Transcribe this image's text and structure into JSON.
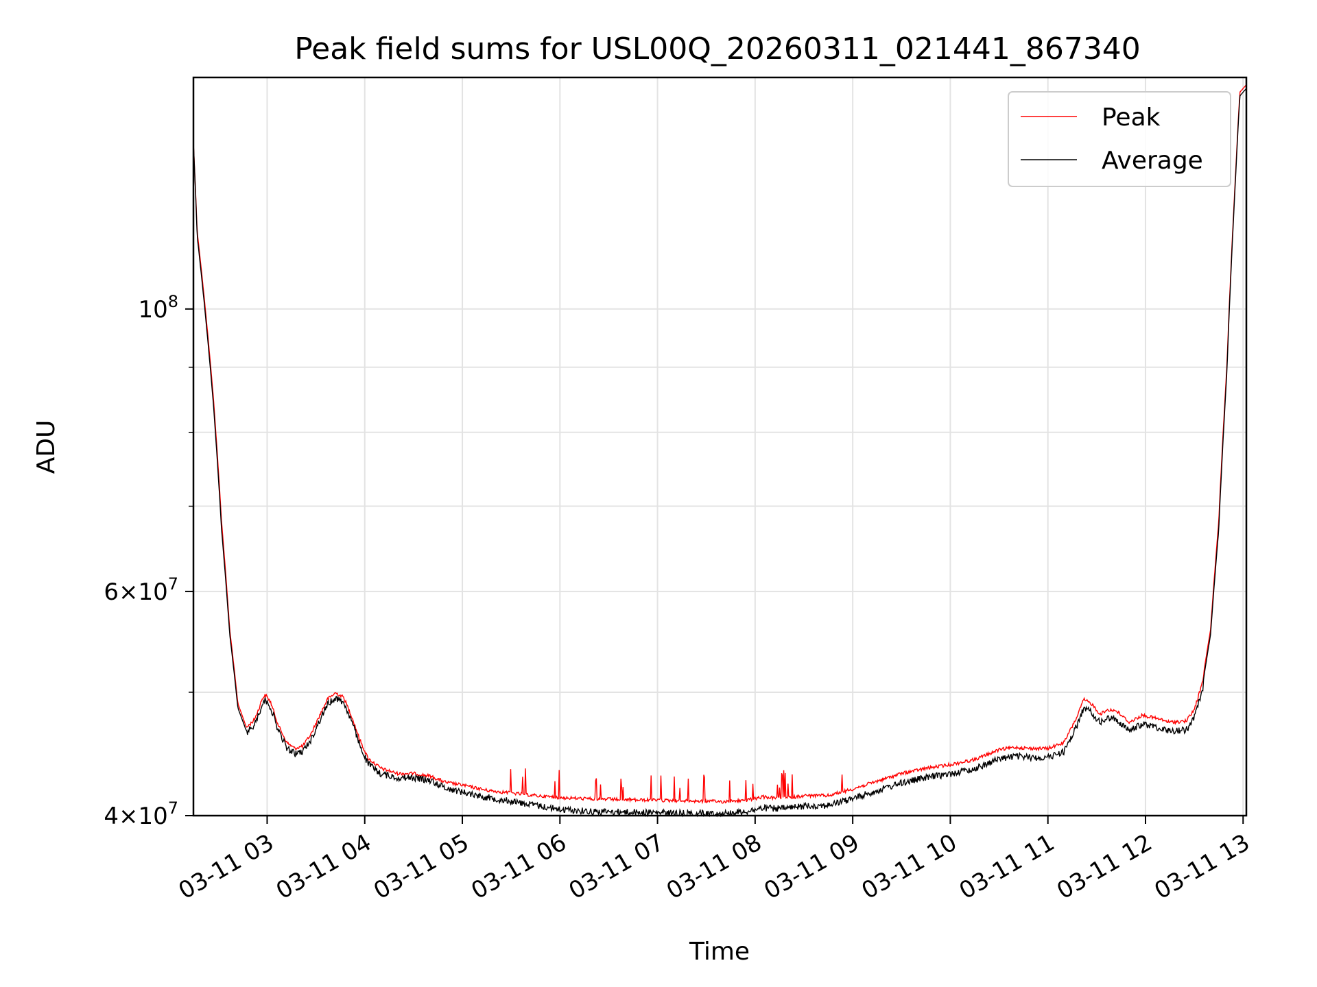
{
  "chart_data": {
    "type": "line",
    "title": "Peak field sums for USL00Q_20260311_021441_867340",
    "xlabel": "Time",
    "ylabel": "ADU",
    "x_scale": "time",
    "y_scale": "log",
    "xlim": [
      "2026-03-11 02:14:41",
      "2026-03-11 13:02:00"
    ],
    "ylim": [
      40000000,
      152000000
    ],
    "x_ticks": [
      {
        "t": "2026-03-11 03:00",
        "label": "03-11 03"
      },
      {
        "t": "2026-03-11 04:00",
        "label": "03-11 04"
      },
      {
        "t": "2026-03-11 05:00",
        "label": "03-11 05"
      },
      {
        "t": "2026-03-11 06:00",
        "label": "03-11 06"
      },
      {
        "t": "2026-03-11 07:00",
        "label": "03-11 07"
      },
      {
        "t": "2026-03-11 08:00",
        "label": "03-11 08"
      },
      {
        "t": "2026-03-11 09:00",
        "label": "03-11 09"
      },
      {
        "t": "2026-03-11 10:00",
        "label": "03-11 10"
      },
      {
        "t": "2026-03-11 11:00",
        "label": "03-11 11"
      },
      {
        "t": "2026-03-11 12:00",
        "label": "03-11 12"
      },
      {
        "t": "2026-03-11 13:00",
        "label": "03-11 13"
      }
    ],
    "y_major_ticks": [
      {
        "value": 40000000,
        "mantissa": "4",
        "exponent": "7"
      },
      {
        "value": 60000000,
        "mantissa": "6",
        "exponent": "7"
      },
      {
        "value": 100000000,
        "mantissa": "",
        "exponent": "8"
      }
    ],
    "y_minor_ticks": [
      50000000,
      70000000,
      80000000,
      90000000
    ],
    "grid": true,
    "legend_position": "top-right",
    "series": [
      {
        "name": "Peak",
        "color": "#ff0000",
        "points": [
          [
            "2026-03-11 02:14:41",
            135000000
          ],
          [
            "2026-03-11 02:17",
            115000000
          ],
          [
            "2026-03-11 02:22",
            100000000
          ],
          [
            "2026-03-11 02:27",
            85000000
          ],
          [
            "2026-03-11 02:32",
            68000000
          ],
          [
            "2026-03-11 02:37",
            56000000
          ],
          [
            "2026-03-11 02:42",
            49000000
          ],
          [
            "2026-03-11 02:47",
            47000000
          ],
          [
            "2026-03-11 02:52",
            47700000
          ],
          [
            "2026-03-11 02:55",
            48700000
          ],
          [
            "2026-03-11 02:57",
            49600000
          ],
          [
            "2026-03-11 02:59",
            49900000
          ],
          [
            "2026-03-11 03:02",
            49300000
          ],
          [
            "2026-03-11 03:07",
            47200000
          ],
          [
            "2026-03-11 03:12",
            45800000
          ],
          [
            "2026-03-11 03:17",
            45300000
          ],
          [
            "2026-03-11 03:22",
            45500000
          ],
          [
            "2026-03-11 03:27",
            46500000
          ],
          [
            "2026-03-11 03:32",
            48000000
          ],
          [
            "2026-03-11 03:37",
            49500000
          ],
          [
            "2026-03-11 03:42",
            50100000
          ],
          [
            "2026-03-11 03:47",
            49700000
          ],
          [
            "2026-03-11 03:52",
            48000000
          ],
          [
            "2026-03-11 03:57",
            46000000
          ],
          [
            "2026-03-11 04:02",
            44500000
          ],
          [
            "2026-03-11 04:10",
            43700000
          ],
          [
            "2026-03-11 04:20",
            43300000
          ],
          [
            "2026-03-11 04:30",
            43300000
          ],
          [
            "2026-03-11 04:40",
            43100000
          ],
          [
            "2026-03-11 04:50",
            42600000
          ],
          [
            "2026-03-11 05:00",
            42400000
          ],
          [
            "2026-03-11 05:15",
            42000000
          ],
          [
            "2026-03-11 05:30",
            41800000
          ],
          [
            "2026-03-11 05:45",
            41600000
          ],
          [
            "2026-03-11 06:00",
            41450000
          ],
          [
            "2026-03-11 06:20",
            41350000
          ],
          [
            "2026-03-11 06:40",
            41300000
          ],
          [
            "2026-03-11 07:00",
            41250000
          ],
          [
            "2026-03-11 07:20",
            41200000
          ],
          [
            "2026-03-11 07:40",
            41150000
          ],
          [
            "2026-03-11 07:55",
            41250000
          ],
          [
            "2026-03-11 08:05",
            41500000
          ],
          [
            "2026-03-11 08:15",
            41400000
          ],
          [
            "2026-03-11 08:25",
            41500000
          ],
          [
            "2026-03-11 08:30",
            41600000
          ],
          [
            "2026-03-11 08:45",
            41600000
          ],
          [
            "2026-03-11 09:00",
            42100000
          ],
          [
            "2026-03-11 09:15",
            42700000
          ],
          [
            "2026-03-11 09:30",
            43300000
          ],
          [
            "2026-03-11 09:45",
            43700000
          ],
          [
            "2026-03-11 10:00",
            44000000
          ],
          [
            "2026-03-11 10:15",
            44400000
          ],
          [
            "2026-03-11 10:30",
            45200000
          ],
          [
            "2026-03-11 10:40",
            45400000
          ],
          [
            "2026-03-11 10:50",
            45300000
          ],
          [
            "2026-03-11 11:00",
            45300000
          ],
          [
            "2026-03-11 11:10",
            45800000
          ],
          [
            "2026-03-11 11:18",
            48000000
          ],
          [
            "2026-03-11 11:22",
            49500000
          ],
          [
            "2026-03-11 11:27",
            49100000
          ],
          [
            "2026-03-11 11:32",
            48200000
          ],
          [
            "2026-03-11 11:37",
            48600000
          ],
          [
            "2026-03-11 11:42",
            48500000
          ],
          [
            "2026-03-11 11:50",
            47500000
          ],
          [
            "2026-03-11 11:58",
            48100000
          ],
          [
            "2026-03-11 12:05",
            47900000
          ],
          [
            "2026-03-11 12:15",
            47500000
          ],
          [
            "2026-03-11 12:25",
            47600000
          ],
          [
            "2026-03-11 12:30",
            48600000
          ],
          [
            "2026-03-11 12:35",
            51000000
          ],
          [
            "2026-03-11 12:40",
            56000000
          ],
          [
            "2026-03-11 12:45",
            68000000
          ],
          [
            "2026-03-11 12:50",
            90000000
          ],
          [
            "2026-03-11 12:55",
            125000000
          ],
          [
            "2026-03-11 12:58",
            148000000
          ],
          [
            "2026-03-11 13:02",
            150000000
          ]
        ]
      },
      {
        "name": "Average",
        "color": "#000000",
        "points": [
          [
            "2026-03-11 02:14:41",
            135000000
          ],
          [
            "2026-03-11 02:17",
            114000000
          ],
          [
            "2026-03-11 02:22",
            99000000
          ],
          [
            "2026-03-11 02:27",
            84000000
          ],
          [
            "2026-03-11 02:32",
            67000000
          ],
          [
            "2026-03-11 02:37",
            55500000
          ],
          [
            "2026-03-11 02:42",
            48600000
          ],
          [
            "2026-03-11 02:47",
            46700000
          ],
          [
            "2026-03-11 02:52",
            47400000
          ],
          [
            "2026-03-11 02:55",
            48400000
          ],
          [
            "2026-03-11 02:57",
            49300000
          ],
          [
            "2026-03-11 02:59",
            49600000
          ],
          [
            "2026-03-11 03:02",
            49000000
          ],
          [
            "2026-03-11 03:07",
            46900000
          ],
          [
            "2026-03-11 03:12",
            45500000
          ],
          [
            "2026-03-11 03:17",
            45000000
          ],
          [
            "2026-03-11 03:22",
            45200000
          ],
          [
            "2026-03-11 03:27",
            46200000
          ],
          [
            "2026-03-11 03:32",
            47700000
          ],
          [
            "2026-03-11 03:37",
            49200000
          ],
          [
            "2026-03-11 03:42",
            49800000
          ],
          [
            "2026-03-11 03:47",
            49400000
          ],
          [
            "2026-03-11 03:52",
            47700000
          ],
          [
            "2026-03-11 03:57",
            45700000
          ],
          [
            "2026-03-11 04:02",
            44200000
          ],
          [
            "2026-03-11 04:10",
            43400000
          ],
          [
            "2026-03-11 04:20",
            43100000
          ],
          [
            "2026-03-11 04:30",
            43100000
          ],
          [
            "2026-03-11 04:40",
            42900000
          ],
          [
            "2026-03-11 04:50",
            42300000
          ],
          [
            "2026-03-11 05:00",
            42000000
          ],
          [
            "2026-03-11 05:15",
            41600000
          ],
          [
            "2026-03-11 05:30",
            41300000
          ],
          [
            "2026-03-11 05:45",
            41000000
          ],
          [
            "2026-03-11 06:00",
            40700000
          ],
          [
            "2026-03-11 06:20",
            40550000
          ],
          [
            "2026-03-11 06:40",
            40500000
          ],
          [
            "2026-03-11 07:00",
            40450000
          ],
          [
            "2026-03-11 07:20",
            40400000
          ],
          [
            "2026-03-11 07:40",
            40400000
          ],
          [
            "2026-03-11 07:55",
            40550000
          ],
          [
            "2026-03-11 08:05",
            40800000
          ],
          [
            "2026-03-11 08:15",
            40750000
          ],
          [
            "2026-03-11 08:25",
            40850000
          ],
          [
            "2026-03-11 08:30",
            40950000
          ],
          [
            "2026-03-11 08:45",
            41000000
          ],
          [
            "2026-03-11 09:00",
            41500000
          ],
          [
            "2026-03-11 09:15",
            42100000
          ],
          [
            "2026-03-11 09:30",
            42700000
          ],
          [
            "2026-03-11 09:45",
            43100000
          ],
          [
            "2026-03-11 10:00",
            43400000
          ],
          [
            "2026-03-11 10:15",
            43800000
          ],
          [
            "2026-03-11 10:30",
            44600000
          ],
          [
            "2026-03-11 10:40",
            44800000
          ],
          [
            "2026-03-11 10:50",
            44700000
          ],
          [
            "2026-03-11 11:00",
            44700000
          ],
          [
            "2026-03-11 11:10",
            45200000
          ],
          [
            "2026-03-11 11:18",
            47400000
          ],
          [
            "2026-03-11 11:22",
            48900000
          ],
          [
            "2026-03-11 11:27",
            48500000
          ],
          [
            "2026-03-11 11:32",
            47600000
          ],
          [
            "2026-03-11 11:37",
            48000000
          ],
          [
            "2026-03-11 11:42",
            47900000
          ],
          [
            "2026-03-11 11:50",
            46900000
          ],
          [
            "2026-03-11 11:58",
            47500000
          ],
          [
            "2026-03-11 12:05",
            47300000
          ],
          [
            "2026-03-11 12:15",
            46900000
          ],
          [
            "2026-03-11 12:25",
            47000000
          ],
          [
            "2026-03-11 12:30",
            48000000
          ],
          [
            "2026-03-11 12:35",
            50500000
          ],
          [
            "2026-03-11 12:40",
            55500000
          ],
          [
            "2026-03-11 12:45",
            67000000
          ],
          [
            "2026-03-11 12:50",
            89000000
          ],
          [
            "2026-03-11 12:55",
            124000000
          ],
          [
            "2026-03-11 12:58",
            147000000
          ],
          [
            "2026-03-11 13:02",
            149000000
          ]
        ]
      }
    ]
  }
}
